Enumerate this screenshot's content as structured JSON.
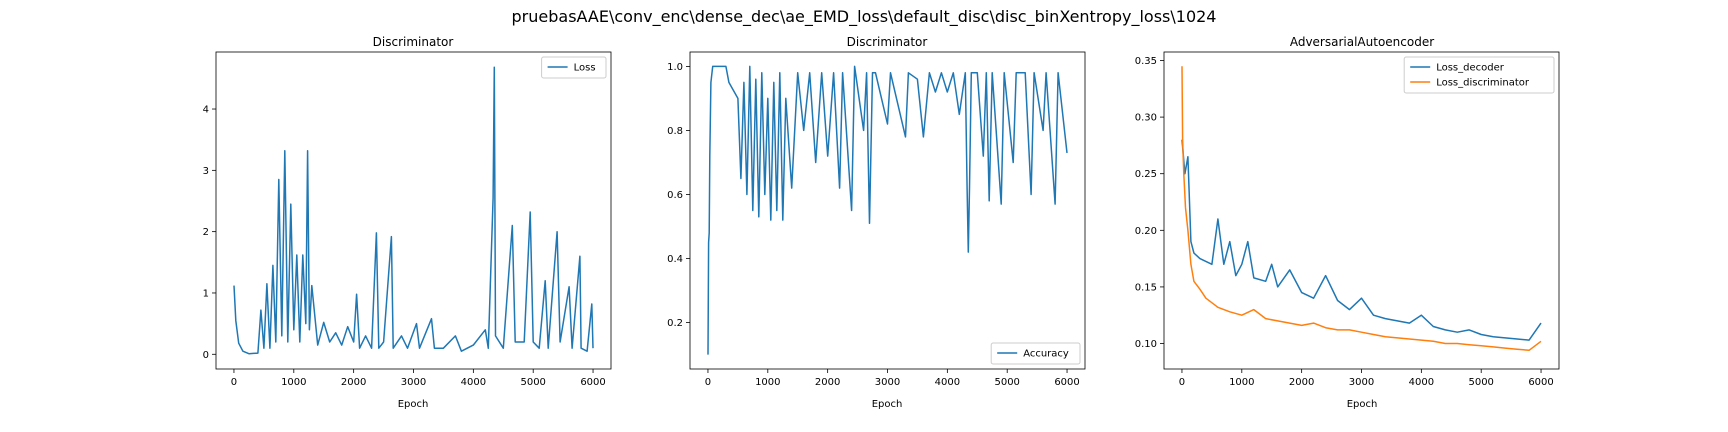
{
  "figure": {
    "suptitle": "pruebasAAE\\conv_enc\\dense_dec\\ae_EMD_loss\\default_disc\\disc_binXentropy_loss\\1024"
  },
  "colors": {
    "blue": "#1f77b4",
    "orange": "#ff7f0e"
  },
  "chart_data": [
    {
      "type": "line",
      "title": "Discriminator",
      "xlabel": "Epoch",
      "ylabel": "",
      "xlim": [
        -300,
        6300
      ],
      "ylim": [
        -0.24,
        4.93
      ],
      "xticks": [
        0,
        1000,
        2000,
        3000,
        4000,
        5000,
        6000
      ],
      "yticks": [
        0,
        1,
        2,
        3,
        4
      ],
      "legend": {
        "location": "upper right"
      },
      "series": [
        {
          "name": "Loss",
          "color": "#1f77b4",
          "points": [
            [
              0,
              1.12
            ],
            [
              30,
              0.55
            ],
            [
              80,
              0.18
            ],
            [
              150,
              0.05
            ],
            [
              250,
              0.01
            ],
            [
              400,
              0.02
            ],
            [
              450,
              0.72
            ],
            [
              500,
              0.1
            ],
            [
              550,
              1.15
            ],
            [
              600,
              0.1
            ],
            [
              650,
              1.45
            ],
            [
              700,
              0.2
            ],
            [
              750,
              2.85
            ],
            [
              800,
              0.3
            ],
            [
              850,
              3.32
            ],
            [
              900,
              0.2
            ],
            [
              950,
              2.45
            ],
            [
              1000,
              0.4
            ],
            [
              1050,
              1.62
            ],
            [
              1100,
              0.2
            ],
            [
              1150,
              1.62
            ],
            [
              1200,
              0.5
            ],
            [
              1230,
              3.32
            ],
            [
              1260,
              0.4
            ],
            [
              1300,
              1.12
            ],
            [
              1400,
              0.15
            ],
            [
              1500,
              0.52
            ],
            [
              1600,
              0.2
            ],
            [
              1700,
              0.35
            ],
            [
              1800,
              0.15
            ],
            [
              1900,
              0.45
            ],
            [
              2000,
              0.2
            ],
            [
              2050,
              0.98
            ],
            [
              2100,
              0.1
            ],
            [
              2200,
              0.3
            ],
            [
              2300,
              0.1
            ],
            [
              2380,
              1.98
            ],
            [
              2420,
              0.1
            ],
            [
              2500,
              0.2
            ],
            [
              2630,
              1.92
            ],
            [
              2660,
              0.1
            ],
            [
              2800,
              0.3
            ],
            [
              2900,
              0.1
            ],
            [
              3050,
              0.5
            ],
            [
              3100,
              0.1
            ],
            [
              3300,
              0.58
            ],
            [
              3350,
              0.1
            ],
            [
              3500,
              0.1
            ],
            [
              3700,
              0.3
            ],
            [
              3800,
              0.05
            ],
            [
              4000,
              0.15
            ],
            [
              4200,
              0.4
            ],
            [
              4250,
              0.1
            ],
            [
              4330,
              2.55
            ],
            [
              4350,
              4.68
            ],
            [
              4370,
              0.3
            ],
            [
              4500,
              0.1
            ],
            [
              4650,
              2.1
            ],
            [
              4700,
              0.2
            ],
            [
              4850,
              0.2
            ],
            [
              4950,
              2.32
            ],
            [
              5000,
              0.2
            ],
            [
              5100,
              0.1
            ],
            [
              5200,
              1.2
            ],
            [
              5250,
              0.1
            ],
            [
              5400,
              2.0
            ],
            [
              5450,
              0.2
            ],
            [
              5600,
              1.1
            ],
            [
              5650,
              0.1
            ],
            [
              5780,
              1.6
            ],
            [
              5800,
              0.1
            ],
            [
              5900,
              0.05
            ],
            [
              5980,
              0.82
            ],
            [
              6000,
              0.1
            ]
          ]
        }
      ]
    },
    {
      "type": "line",
      "title": "Discriminator",
      "xlabel": "Epoch",
      "ylabel": "",
      "xlim": [
        -300,
        6300
      ],
      "ylim": [
        0.055,
        1.045
      ],
      "xticks": [
        0,
        1000,
        2000,
        3000,
        4000,
        5000,
        6000
      ],
      "yticks": [
        0.2,
        0.4,
        0.6,
        0.8,
        1.0
      ],
      "yticklabels": [
        "0.2",
        "0.4",
        "0.6",
        "0.8",
        "1.0"
      ],
      "legend": {
        "location": "lower right"
      },
      "series": [
        {
          "name": "Accuracy",
          "color": "#1f77b4",
          "points": [
            [
              0,
              0.1
            ],
            [
              10,
              0.45
            ],
            [
              20,
              0.48
            ],
            [
              30,
              0.72
            ],
            [
              50,
              0.95
            ],
            [
              80,
              1.0
            ],
            [
              300,
              1.0
            ],
            [
              350,
              0.95
            ],
            [
              500,
              0.9
            ],
            [
              550,
              0.65
            ],
            [
              600,
              0.95
            ],
            [
              650,
              0.6
            ],
            [
              700,
              1.0
            ],
            [
              750,
              0.55
            ],
            [
              800,
              0.96
            ],
            [
              850,
              0.53
            ],
            [
              900,
              0.98
            ],
            [
              950,
              0.6
            ],
            [
              1000,
              0.9
            ],
            [
              1050,
              0.52
            ],
            [
              1100,
              0.95
            ],
            [
              1150,
              0.55
            ],
            [
              1200,
              0.98
            ],
            [
              1250,
              0.52
            ],
            [
              1300,
              0.9
            ],
            [
              1400,
              0.62
            ],
            [
              1500,
              0.98
            ],
            [
              1600,
              0.8
            ],
            [
              1700,
              0.98
            ],
            [
              1800,
              0.7
            ],
            [
              1900,
              0.98
            ],
            [
              2000,
              0.72
            ],
            [
              2100,
              0.98
            ],
            [
              2200,
              0.62
            ],
            [
              2250,
              0.98
            ],
            [
              2400,
              0.55
            ],
            [
              2450,
              1.0
            ],
            [
              2600,
              0.8
            ],
            [
              2650,
              0.98
            ],
            [
              2700,
              0.51
            ],
            [
              2750,
              0.98
            ],
            [
              2800,
              0.98
            ],
            [
              3000,
              0.82
            ],
            [
              3050,
              0.98
            ],
            [
              3300,
              0.78
            ],
            [
              3350,
              0.98
            ],
            [
              3500,
              0.96
            ],
            [
              3600,
              0.78
            ],
            [
              3700,
              0.98
            ],
            [
              3800,
              0.92
            ],
            [
              3900,
              0.98
            ],
            [
              4000,
              0.92
            ],
            [
              4100,
              0.98
            ],
            [
              4200,
              0.85
            ],
            [
              4300,
              0.98
            ],
            [
              4330,
              0.62
            ],
            [
              4350,
              0.42
            ],
            [
              4370,
              0.62
            ],
            [
              4400,
              0.98
            ],
            [
              4500,
              0.98
            ],
            [
              4600,
              0.72
            ],
            [
              4650,
              0.98
            ],
            [
              4700,
              0.58
            ],
            [
              4750,
              0.98
            ],
            [
              4900,
              0.57
            ],
            [
              4950,
              0.98
            ],
            [
              5100,
              0.7
            ],
            [
              5150,
              0.98
            ],
            [
              5300,
              0.98
            ],
            [
              5400,
              0.6
            ],
            [
              5450,
              0.98
            ],
            [
              5600,
              0.8
            ],
            [
              5650,
              0.98
            ],
            [
              5800,
              0.57
            ],
            [
              5850,
              0.98
            ],
            [
              6000,
              0.73
            ]
          ]
        }
      ]
    },
    {
      "type": "line",
      "title": "AdversarialAutoencoder",
      "xlabel": "Epoch",
      "ylabel": "",
      "xlim": [
        -300,
        6300
      ],
      "ylim": [
        0.0775,
        0.3575
      ],
      "xticks": [
        0,
        1000,
        2000,
        3000,
        4000,
        5000,
        6000
      ],
      "yticks": [
        0.1,
        0.15,
        0.2,
        0.25,
        0.3,
        0.35
      ],
      "yticklabels": [
        "0.10",
        "0.15",
        "0.20",
        "0.25",
        "0.30",
        "0.35"
      ],
      "legend": {
        "location": "upper right"
      },
      "series": [
        {
          "name": "Loss_decoder",
          "color": "#1f77b4",
          "points": [
            [
              0,
              0.28
            ],
            [
              50,
              0.25
            ],
            [
              100,
              0.265
            ],
            [
              150,
              0.19
            ],
            [
              200,
              0.18
            ],
            [
              300,
              0.175
            ],
            [
              500,
              0.17
            ],
            [
              600,
              0.21
            ],
            [
              700,
              0.17
            ],
            [
              800,
              0.19
            ],
            [
              900,
              0.16
            ],
            [
              1000,
              0.17
            ],
            [
              1100,
              0.19
            ],
            [
              1200,
              0.158
            ],
            [
              1400,
              0.155
            ],
            [
              1500,
              0.17
            ],
            [
              1600,
              0.15
            ],
            [
              1800,
              0.165
            ],
            [
              2000,
              0.145
            ],
            [
              2200,
              0.14
            ],
            [
              2400,
              0.16
            ],
            [
              2600,
              0.138
            ],
            [
              2800,
              0.13
            ],
            [
              3000,
              0.14
            ],
            [
              3200,
              0.125
            ],
            [
              3400,
              0.122
            ],
            [
              3600,
              0.12
            ],
            [
              3800,
              0.118
            ],
            [
              4000,
              0.125
            ],
            [
              4200,
              0.115
            ],
            [
              4400,
              0.112
            ],
            [
              4600,
              0.11
            ],
            [
              4800,
              0.112
            ],
            [
              5000,
              0.108
            ],
            [
              5200,
              0.106
            ],
            [
              5400,
              0.105
            ],
            [
              5600,
              0.104
            ],
            [
              5800,
              0.103
            ],
            [
              6000,
              0.118
            ]
          ]
        },
        {
          "name": "Loss_discriminator",
          "color": "#ff7f0e",
          "points": [
            [
              0,
              0.345
            ],
            [
              10,
              0.28
            ],
            [
              30,
              0.25
            ],
            [
              60,
              0.22
            ],
            [
              100,
              0.2
            ],
            [
              150,
              0.17
            ],
            [
              200,
              0.155
            ],
            [
              300,
              0.148
            ],
            [
              400,
              0.14
            ],
            [
              600,
              0.132
            ],
            [
              800,
              0.128
            ],
            [
              1000,
              0.125
            ],
            [
              1200,
              0.13
            ],
            [
              1400,
              0.122
            ],
            [
              1600,
              0.12
            ],
            [
              1800,
              0.118
            ],
            [
              2000,
              0.116
            ],
            [
              2200,
              0.118
            ],
            [
              2400,
              0.114
            ],
            [
              2600,
              0.112
            ],
            [
              2800,
              0.112
            ],
            [
              3000,
              0.11
            ],
            [
              3200,
              0.108
            ],
            [
              3400,
              0.106
            ],
            [
              3600,
              0.105
            ],
            [
              3800,
              0.104
            ],
            [
              4000,
              0.103
            ],
            [
              4200,
              0.102
            ],
            [
              4400,
              0.1
            ],
            [
              4600,
              0.1
            ],
            [
              4800,
              0.099
            ],
            [
              5000,
              0.098
            ],
            [
              5200,
              0.097
            ],
            [
              5400,
              0.096
            ],
            [
              5600,
              0.095
            ],
            [
              5800,
              0.094
            ],
            [
              6000,
              0.102
            ]
          ]
        }
      ]
    }
  ]
}
